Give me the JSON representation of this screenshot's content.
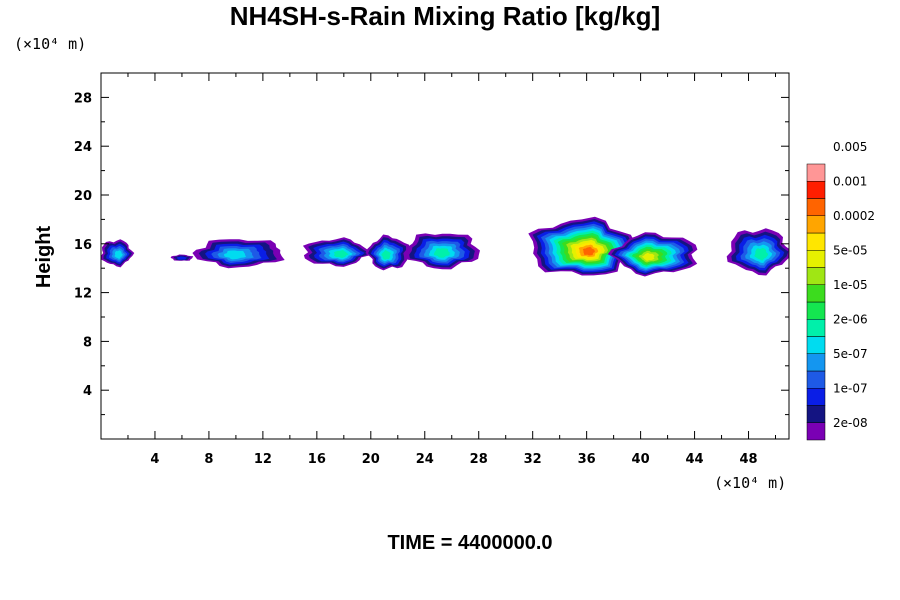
{
  "chart_data": {
    "type": "heatmap",
    "title": "NH4SH-s-Rain Mixing Ratio [kg/kg]",
    "ylabel": "Height",
    "xlabel": "",
    "x_unit": "(×10⁴ m)",
    "y_unit": "(×10⁴ m)",
    "xlim": [
      0,
      51
    ],
    "ylim": [
      0,
      30
    ],
    "x_ticks": [
      "4",
      "8",
      "12",
      "16",
      "20",
      "24",
      "28",
      "32",
      "36",
      "40",
      "44",
      "48"
    ],
    "y_ticks": [
      "4",
      "8",
      "12",
      "16",
      "20",
      "24",
      "28"
    ],
    "footer": "TIME = 4400000.0",
    "colorbar": {
      "colors": [
        "#7a00b4",
        "#141482",
        "#0a1ee6",
        "#1e5ae6",
        "#1496f0",
        "#00dcf0",
        "#00f0aa",
        "#14e650",
        "#3cdc1e",
        "#a0e614",
        "#e6f000",
        "#ffe600",
        "#ffa500",
        "#ff6400",
        "#ff1e00",
        "#ff9696"
      ],
      "labels": [
        "2e-08",
        "1e-07",
        "5e-07",
        "2e-06",
        "1e-05",
        "5e-05",
        "0.0002",
        "0.001",
        "0.005"
      ]
    },
    "clouds": [
      {
        "x": [
          0.0,
          2.3
        ],
        "y_base": 14.2,
        "y_top": 16.3,
        "peak": 6
      },
      {
        "x": [
          5.2,
          6.8
        ],
        "y_base": 14.6,
        "y_top": 15.1,
        "peak": 3
      },
      {
        "x": [
          7.0,
          13.5
        ],
        "y_base": 14.1,
        "y_top": 16.4,
        "peak": 6
      },
      {
        "x": [
          15.0,
          19.8
        ],
        "y_base": 14.2,
        "y_top": 16.4,
        "peak": 7
      },
      {
        "x": [
          19.8,
          22.8
        ],
        "y_base": 13.9,
        "y_top": 16.6,
        "peak": 7
      },
      {
        "x": [
          22.6,
          28.0
        ],
        "y_base": 14.0,
        "y_top": 16.9,
        "peak": 7
      },
      {
        "x": [
          31.8,
          39.5
        ],
        "y_base": 13.4,
        "y_top": 18.0,
        "peak": 14
      },
      {
        "x": [
          38.0,
          44.2
        ],
        "y_base": 13.5,
        "y_top": 16.8,
        "peak": 11
      },
      {
        "x": [
          46.5,
          51.0
        ],
        "y_base": 13.6,
        "y_top": 17.2,
        "peak": 7
      }
    ]
  }
}
